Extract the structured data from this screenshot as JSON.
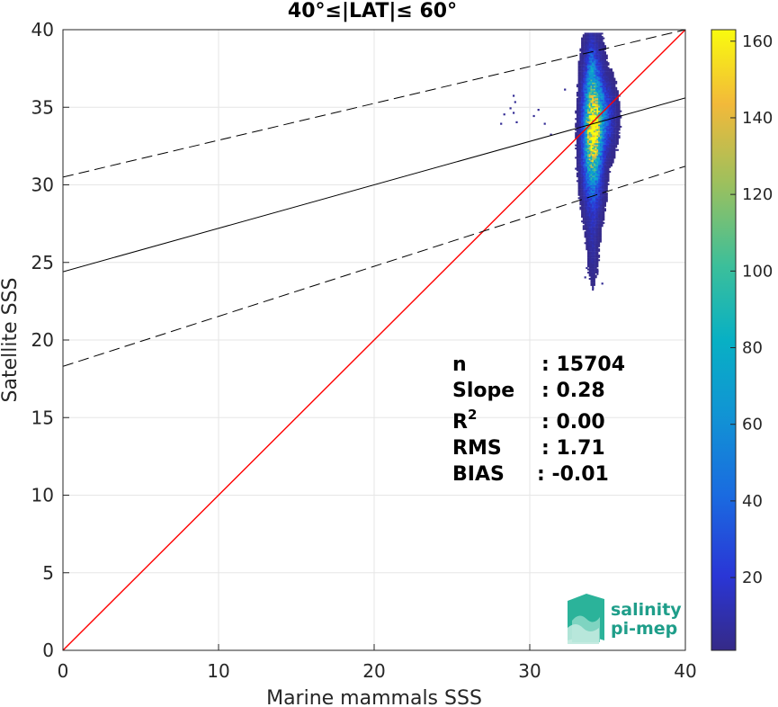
{
  "chart_data": {
    "type": "heatmap",
    "title": "40°≤|LAT|≤ 60°",
    "xlabel": "Marine mammals SSS",
    "ylabel": "Satellite SSS",
    "xlim": [
      0,
      40
    ],
    "ylim": [
      0,
      40
    ],
    "xticks": [
      "0",
      "10",
      "20",
      "30",
      "40"
    ],
    "yticks": [
      "0",
      "5",
      "10",
      "15",
      "20",
      "25",
      "30",
      "35",
      "40"
    ],
    "grid": true,
    "colorbar": {
      "range": [
        1,
        163
      ],
      "ticks": [
        "20",
        "40",
        "60",
        "80",
        "100",
        "120",
        "140",
        "160"
      ],
      "colormap": "parula"
    },
    "lines": [
      {
        "name": "1:1",
        "color": "#ff0000",
        "style": "solid",
        "x": [
          0,
          40
        ],
        "y": [
          0,
          40
        ]
      },
      {
        "name": "fit",
        "color": "#000000",
        "style": "solid",
        "x": [
          0,
          40
        ],
        "y": [
          24.4,
          35.6
        ]
      },
      {
        "name": "fit_upper",
        "color": "#000000",
        "style": "dashed",
        "x": [
          0,
          40
        ],
        "y": [
          30.5,
          40.0
        ]
      },
      {
        "name": "fit_lower",
        "color": "#000000",
        "style": "dashed",
        "x": [
          0,
          40
        ],
        "y": [
          18.3,
          31.2
        ]
      }
    ],
    "density_clusters": [
      {
        "x": 34.0,
        "y": 33.5,
        "sx": 0.35,
        "sy": 2.4,
        "peak": 163
      },
      {
        "x": 34.6,
        "y": 34.3,
        "sx": 0.45,
        "sy": 1.3,
        "peak": 40
      },
      {
        "x": 33.9,
        "y": 37.5,
        "sx": 0.15,
        "sy": 1.0,
        "peak": 20
      },
      {
        "x": 34.0,
        "y": 26.5,
        "sx": 0.2,
        "sy": 1.6,
        "peak": 8
      }
    ],
    "outliers": [
      [
        28.9,
        35.7
      ],
      [
        29.0,
        35.3
      ],
      [
        28.7,
        34.9
      ],
      [
        28.9,
        34.6
      ],
      [
        29.1,
        34.0
      ],
      [
        28.3,
        34.5
      ],
      [
        28.1,
        33.9
      ],
      [
        30.2,
        34.4
      ],
      [
        30.5,
        34.8
      ],
      [
        30.9,
        33.9
      ],
      [
        31.3,
        33.2
      ],
      [
        32.2,
        36.1
      ],
      [
        33.6,
        24.6
      ],
      [
        33.5,
        24.0
      ],
      [
        34.3,
        24.4
      ],
      [
        34.6,
        23.6
      ],
      [
        34.0,
        23.3
      ],
      [
        33.8,
        25.3
      ],
      [
        35.3,
        34.3
      ],
      [
        35.5,
        33.6
      ],
      [
        35.2,
        32.8
      ],
      [
        35.0,
        31.6
      ],
      [
        35.7,
        35.7
      ],
      [
        32.9,
        31.0
      ]
    ]
  },
  "stats": {
    "labels": [
      "n",
      "Slope",
      "R",
      "RMS",
      "BIAS"
    ],
    "r2_sup": "2",
    "values": [
      ": 15704",
      ": 0.28",
      ": 0.00",
      ": 1.71",
      ": -0.01"
    ]
  },
  "logo": {
    "line1": "salinity",
    "line2": "pi-mep"
  }
}
